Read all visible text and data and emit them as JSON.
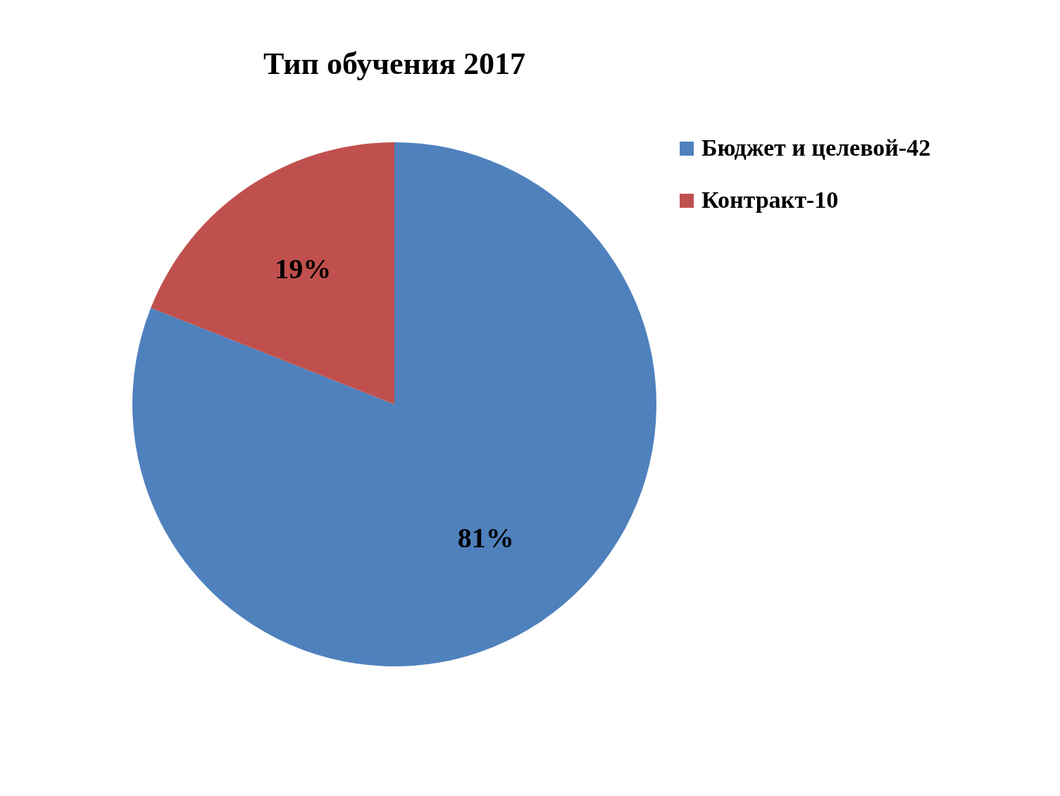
{
  "chart_data": {
    "type": "pie",
    "title": "Тип обучения 2017",
    "categories": [
      "Бюджет и целевой-42",
      "Контракт-10"
    ],
    "values": [
      81,
      19
    ],
    "colors": [
      "#4f81bd",
      "#c0504d"
    ],
    "value_labels": [
      "81%",
      "19%"
    ],
    "legend": "right"
  }
}
